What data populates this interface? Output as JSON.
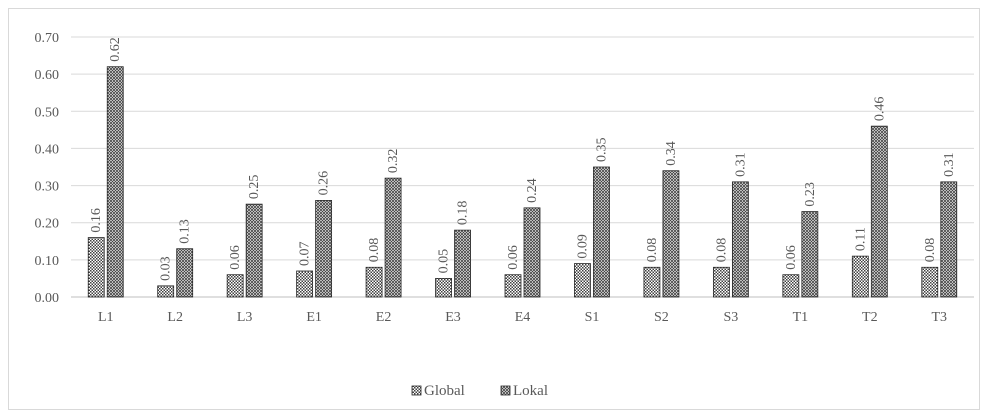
{
  "chart_data": {
    "type": "bar",
    "title": "",
    "xlabel": "",
    "ylabel": "",
    "categories": [
      "L1",
      "L2",
      "L3",
      "E1",
      "E2",
      "E3",
      "E4",
      "S1",
      "S2",
      "S3",
      "T1",
      "T2",
      "T3"
    ],
    "series": [
      {
        "name": "Global",
        "values": [
          0.16,
          0.03,
          0.06,
          0.07,
          0.08,
          0.05,
          0.06,
          0.09,
          0.08,
          0.08,
          0.06,
          0.11,
          0.08
        ],
        "labels": [
          "0.16",
          "0.03",
          "0.06",
          "0.07",
          "0.08",
          "0.05",
          "0.06",
          "0.09",
          "0.08",
          "0.08",
          "0.06",
          "0.11",
          "0.08"
        ],
        "color": "#404040",
        "pattern": "fine-check"
      },
      {
        "name": "Lokal",
        "values": [
          0.62,
          0.13,
          0.25,
          0.26,
          0.32,
          0.18,
          0.24,
          0.35,
          0.34,
          0.31,
          0.23,
          0.46,
          0.31
        ],
        "labels": [
          "0.62",
          "0.13",
          "0.25",
          "0.26",
          "0.32",
          "0.18",
          "0.24",
          "0.35",
          "0.34",
          "0.31",
          "0.23",
          "0.46",
          "0.31"
        ],
        "color": "#404040",
        "pattern": "diagonal-cross"
      }
    ],
    "ylim": [
      0,
      0.7
    ],
    "yticks": [
      "0.00",
      "0.10",
      "0.20",
      "0.30",
      "0.40",
      "0.50",
      "0.60",
      "0.70"
    ],
    "grid": true,
    "legend": "bottom-center"
  }
}
